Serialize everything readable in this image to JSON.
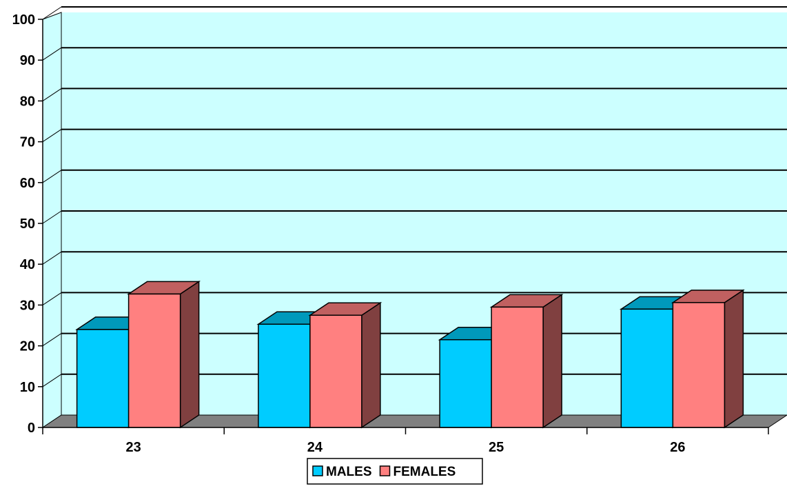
{
  "chart_data": {
    "type": "bar",
    "categories": [
      "23",
      "24",
      "25",
      "26"
    ],
    "series": [
      {
        "name": "MALES",
        "values": [
          24,
          25.3,
          21.5,
          29
        ]
      },
      {
        "name": "FEMALES",
        "values": [
          32.7,
          27.5,
          29.5,
          30.6
        ]
      }
    ],
    "title": "",
    "xlabel": "",
    "ylabel": "",
    "ylim": [
      0,
      100
    ],
    "yticks": [
      "0",
      "10",
      "20",
      "30",
      "40",
      "50",
      "60",
      "70",
      "80",
      "90",
      "100"
    ],
    "grid": true,
    "legend": "bottom-center",
    "style": "3d-column",
    "colors": {
      "wall": "#ccffff",
      "floor": "#808080",
      "grid": "#000000",
      "MALES": {
        "front": "#00ccff",
        "top": "#0099bb",
        "side": "#006b85"
      },
      "FEMALES": {
        "front": "#ff8080",
        "top": "#c06060",
        "side": "#804040"
      }
    }
  }
}
